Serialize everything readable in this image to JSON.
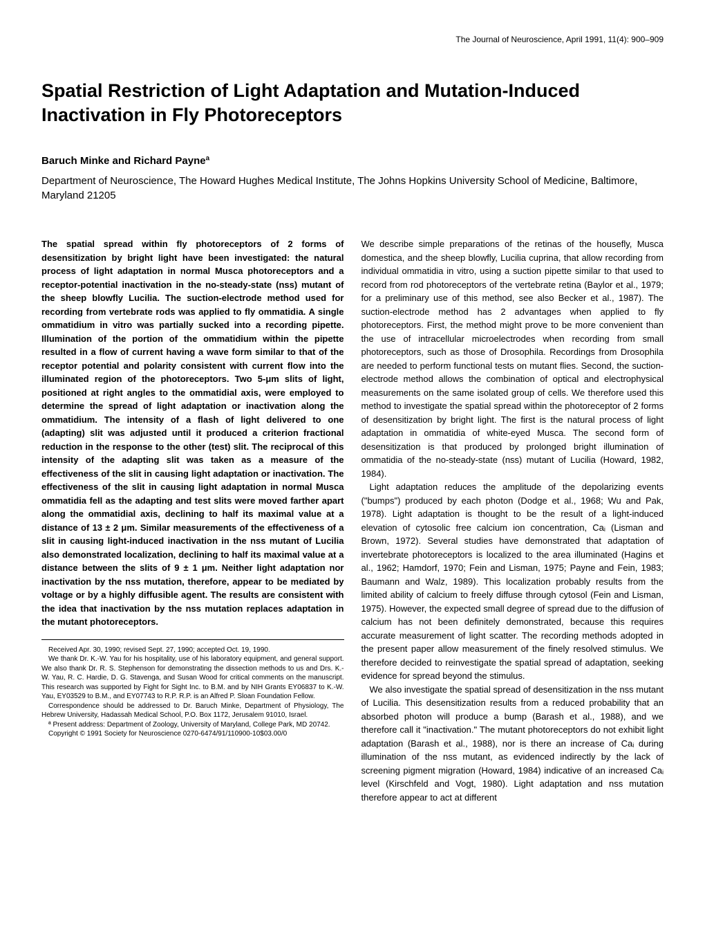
{
  "journal": "The Journal of Neuroscience, April 1991, 11(4): 900–909",
  "title": "Spatial Restriction of Light Adaptation and Mutation-Induced Inactivation in Fly Photoreceptors",
  "authors": "Baruch Minke and Richard Payneª",
  "affiliation": "Department of Neuroscience, The Howard Hughes Medical Institute, The Johns Hopkins University School of Medicine, Baltimore, Maryland 21205",
  "abstract": "The spatial spread within fly photoreceptors of 2 forms of desensitization by bright light have been investigated: the natural process of light adaptation in normal Musca photoreceptors and a receptor-potential inactivation in the no-steady-state (nss) mutant of the sheep blowfly Lucilia. The suction-electrode method used for recording from vertebrate rods was applied to fly ommatidia. A single ommatidium in vitro was partially sucked into a recording pipette. Illumination of the portion of the ommatidium within the pipette resulted in a flow of current having a wave form similar to that of the receptor potential and polarity consistent with current flow into the illuminated region of the photoreceptors. Two 5-μm slits of light, positioned at right angles to the ommatidial axis, were employed to determine the spread of light adaptation or inactivation along the ommatidium. The intensity of a flash of light delivered to one (adapting) slit was adjusted until it produced a criterion fractional reduction in the response to the other (test) slit. The reciprocal of this intensity of the adapting slit was taken as a measure of the effectiveness of the slit in causing light adaptation or inactivation. The effectiveness of the slit in causing light adaptation in normal Musca ommatidia fell as the adapting and test slits were moved farther apart along the ommatidial axis, declining to half its maximal value at a distance of 13 ± 2 μm. Similar measurements of the effectiveness of a slit in causing light-induced inactivation in the nss mutant of Lucilia also demonstrated localization, declining to half its maximal value at a distance between the slits of 9 ± 1 μm. Neither light adaptation nor inactivation by the nss mutation, therefore, appear to be mediated by voltage or by a highly diffusible agent. The results are consistent with the idea that inactivation by the nss mutation replaces adaptation in the mutant photoreceptors.",
  "footnote": {
    "received": "Received Apr. 30, 1990; revised Sept. 27, 1990; accepted Oct. 19, 1990.",
    "thanks": "We thank Dr. K.-W. Yau for his hospitality, use of his laboratory equipment, and general support. We also thank Dr. R. S. Stephenson for demonstrating the dissection methods to us and Drs. K.-W. Yau, R. C. Hardie, D. G. Stavenga, and Susan Wood for critical comments on the manuscript. This research was supported by Fight for Sight Inc. to B.M. and by NIH Grants EY06837 to K.-W. Yau, EY03529 to B.M., and EY07743 to R.P. R.P. is an Alfred P. Sloan Foundation Fellow.",
    "correspondence": "Correspondence should be addressed to Dr. Baruch Minke, Department of Physiology, The Hebrew University, Hadassah Medical School, P.O. Box 1172, Jerusalem 91010, Israel.",
    "present": "ª Present address: Department of Zoology, University of Maryland, College Park, MD 20742.",
    "copyright": "Copyright © 1991 Society for Neuroscience 0270-6474/91/110900-10$03.00/0"
  },
  "body": {
    "p1": "We describe simple preparations of the retinas of the housefly, Musca domestica, and the sheep blowfly, Lucilia cuprina, that allow recording from individual ommatidia in vitro, using a suction pipette similar to that used to record from rod photoreceptors of the vertebrate retina (Baylor et al., 1979; for a preliminary use of this method, see also Becker et al., 1987). The suction-electrode method has 2 advantages when applied to fly photoreceptors. First, the method might prove to be more convenient than the use of intracellular microelectrodes when recording from small photoreceptors, such as those of Drosophila. Recordings from Drosophila are needed to perform functional tests on mutant flies. Second, the suction-electrode method allows the combination of optical and electrophysical measurements on the same isolated group of cells. We therefore used this method to investigate the spatial spread within the photoreceptor of 2 forms of desensitization by bright light. The first is the natural process of light adaptation in ommatidia of white-eyed Musca. The second form of desensitization is that produced by prolonged bright illumination of ommatidia of the no-steady-state (nss) mutant of Lucilia (Howard, 1982, 1984).",
    "p2": "Light adaptation reduces the amplitude of the depolarizing events (\"bumps\") produced by each photon (Dodge et al., 1968; Wu and Pak, 1978). Light adaptation is thought to be the result of a light-induced elevation of cytosolic free calcium ion concentration, Caᵢ (Lisman and Brown, 1972). Several studies have demonstrated that adaptation of invertebrate photoreceptors is localized to the area illuminated (Hagins et al., 1962; Hamdorf, 1970; Fein and Lisman, 1975; Payne and Fein, 1983; Baumann and Walz, 1989). This localization probably results from the limited ability of calcium to freely diffuse through cytosol (Fein and Lisman, 1975). However, the expected small degree of spread due to the diffusion of calcium has not been definitely demonstrated, because this requires accurate measurement of light scatter. The recording methods adopted in the present paper allow measurement of the finely resolved stimulus. We therefore decided to reinvestigate the spatial spread of adaptation, seeking evidence for spread beyond the stimulus.",
    "p3": "We also investigate the spatial spread of desensitization in the nss mutant of Lucilia. This desensitization results from a reduced probability that an absorbed photon will produce a bump (Barash et al., 1988), and we therefore call it \"inactivation.\" The mutant photoreceptors do not exhibit light adaptation (Barash et al., 1988), nor is there an increase of Caᵢ during illumination of the nss mutant, as evidenced indirectly by the lack of screening pigment migration (Howard, 1984) indicative of an increased Caᵢ level (Kirschfeld and Vogt, 1980). Light adaptation and nss mutation therefore appear to act at different"
  }
}
